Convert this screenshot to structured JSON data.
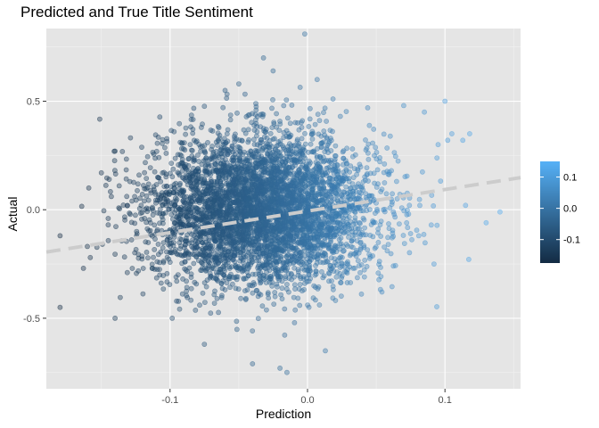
{
  "chart_data": {
    "type": "scatter",
    "title": "Predicted and True Title Sentiment",
    "xlabel": "Prediction",
    "ylabel": "Actual",
    "xlim": [
      -0.19,
      0.155
    ],
    "ylim": [
      -0.825,
      0.835
    ],
    "x_ticks": [
      -0.1,
      0.0,
      0.1
    ],
    "x_tick_labels": [
      "-0.1",
      "0.0",
      "0.1"
    ],
    "y_ticks": [
      -0.5,
      0.0,
      0.5
    ],
    "y_tick_labels": [
      "-0.5",
      "0.0",
      "0.5"
    ],
    "grid": true,
    "background": "#e5e5e5",
    "point_alpha": 0.4,
    "color_by": "x (prediction)",
    "color_scale": {
      "low": "#132b43",
      "high": "#56b1f7",
      "range": [
        -0.175,
        0.15
      ]
    },
    "legend": {
      "position": "right",
      "tick_labels": [
        "0.1",
        "0.0",
        "-0.1"
      ],
      "tick_values": [
        0.1,
        0.0,
        -0.1
      ]
    },
    "trend_line": {
      "style": "dashed",
      "color": "#cccccc",
      "x": [
        -0.19,
        0.155
      ],
      "y": [
        -0.195,
        0.148
      ]
    },
    "cloud": {
      "x_center": -0.032,
      "x_sd": 0.04,
      "y_center": 0.0,
      "y_sd": 0.17,
      "n_points": 5000
    },
    "points": [
      {
        "x": -0.002,
        "y": 0.81
      },
      {
        "x": -0.032,
        "y": 0.7
      },
      {
        "x": -0.025,
        "y": 0.64
      },
      {
        "x": 0.007,
        "y": 0.6
      },
      {
        "x": -0.05,
        "y": 0.58
      },
      {
        "x": -0.06,
        "y": 0.55
      },
      {
        "x": 0.1,
        "y": 0.5
      },
      {
        "x": 0.085,
        "y": 0.45
      },
      {
        "x": 0.07,
        "y": 0.48
      },
      {
        "x": 0.105,
        "y": 0.35
      },
      {
        "x": 0.118,
        "y": 0.35
      },
      {
        "x": 0.113,
        "y": 0.32
      },
      {
        "x": 0.102,
        "y": 0.32
      },
      {
        "x": 0.095,
        "y": 0.3
      },
      {
        "x": 0.13,
        "y": -0.06
      },
      {
        "x": 0.14,
        "y": -0.01
      },
      {
        "x": 0.115,
        "y": 0.02
      },
      {
        "x": 0.09,
        "y": -0.07
      },
      {
        "x": 0.092,
        "y": -0.25
      },
      {
        "x": 0.075,
        "y": -0.11
      },
      {
        "x": -0.18,
        "y": -0.45
      },
      {
        "x": -0.18,
        "y": -0.12
      },
      {
        "x": -0.163,
        "y": -0.27
      },
      {
        "x": -0.158,
        "y": -0.22
      },
      {
        "x": -0.15,
        "y": 0.17
      },
      {
        "x": -0.14,
        "y": -0.5
      },
      {
        "x": -0.145,
        "y": -0.04
      },
      {
        "x": -0.14,
        "y": 0.27
      },
      {
        "x": -0.02,
        "y": -0.73
      },
      {
        "x": -0.015,
        "y": -0.75
      },
      {
        "x": -0.04,
        "y": -0.71
      },
      {
        "x": 0.013,
        "y": -0.65
      },
      {
        "x": -0.075,
        "y": -0.62
      }
    ]
  }
}
